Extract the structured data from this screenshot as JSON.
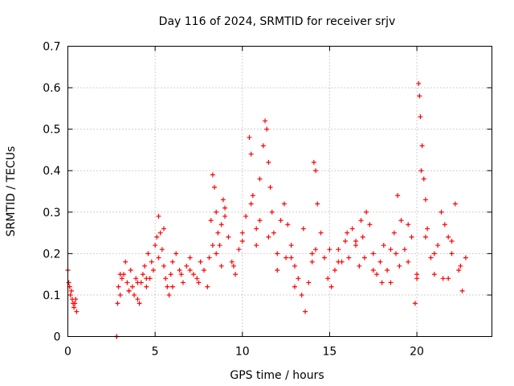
{
  "chart_data": {
    "type": "scatter",
    "title": "Day 116 of 2024, SRMTID for receiver srjv",
    "xlabel": "GPS time / hours",
    "ylabel": "SRMTID / TECUs",
    "xlim": [
      0,
      24.3
    ],
    "ylim": [
      0,
      0.7
    ],
    "xticks": [
      0,
      5,
      10,
      15,
      20
    ],
    "xtick_labels": [
      "0",
      "5",
      "10",
      "15",
      "20"
    ],
    "yticks": [
      0,
      0.1,
      0.2,
      0.3,
      0.4,
      0.5,
      0.6,
      0.7
    ],
    "ytick_labels": [
      "0",
      "0.1",
      "0.2",
      "0.3",
      "0.4",
      "0.5",
      "0.6",
      "0.7"
    ],
    "grid": true,
    "marker": "plus",
    "color": "#ff0000",
    "series": [
      {
        "name": "SRMTID",
        "x": [
          0.0,
          0.05,
          0.1,
          0.15,
          0.2,
          0.25,
          0.3,
          0.35,
          0.4,
          0.45,
          0.5,
          2.8,
          2.8,
          2.85,
          2.9,
          3.0,
          3.1,
          3.2,
          3.3,
          3.4,
          3.5,
          3.6,
          3.7,
          3.8,
          3.9,
          4.0,
          4.1,
          4.2,
          4.3,
          4.4,
          4.5,
          4.6,
          4.7,
          4.8,
          4.9,
          5.0,
          5.1,
          5.2,
          5.3,
          5.4,
          5.5,
          5.6,
          5.7,
          5.8,
          5.9,
          6.0,
          6.2,
          6.4,
          6.6,
          6.8,
          7.0,
          7.2,
          7.4,
          7.6,
          7.8,
          8.0,
          8.1,
          8.2,
          8.3,
          8.4,
          8.5,
          8.6,
          8.7,
          8.8,
          8.9,
          9.0,
          9.2,
          9.4,
          9.6,
          9.8,
          10.0,
          10.2,
          10.4,
          10.5,
          10.6,
          10.8,
          11.0,
          11.2,
          11.3,
          11.4,
          11.5,
          11.6,
          11.7,
          11.8,
          12.0,
          12.2,
          12.4,
          12.6,
          12.8,
          13.0,
          13.2,
          13.4,
          13.6,
          13.8,
          14.0,
          14.1,
          14.2,
          14.3,
          14.5,
          14.7,
          14.9,
          15.1,
          15.3,
          15.5,
          15.7,
          15.9,
          16.1,
          16.3,
          16.5,
          16.7,
          16.9,
          17.1,
          17.3,
          17.5,
          17.7,
          17.9,
          18.1,
          18.3,
          18.5,
          18.7,
          18.9,
          19.1,
          19.3,
          19.5,
          19.7,
          19.9,
          20.0,
          20.1,
          20.15,
          20.2,
          20.25,
          20.3,
          20.4,
          20.5,
          20.6,
          20.8,
          21.0,
          21.2,
          21.4,
          21.6,
          21.8,
          22.0,
          22.2,
          22.4,
          22.6,
          22.8,
          3.0,
          4.0,
          5.2,
          6.5,
          7.5,
          8.3,
          9.0,
          10.5,
          11.5,
          12.5,
          13.5,
          14.2,
          15.5,
          16.5,
          17.5,
          18.5,
          19.5,
          20.5,
          21.5,
          22.5,
          3.5,
          4.5,
          6.0,
          7.0,
          8.5,
          9.5,
          10.0,
          11.0,
          12.0,
          13.0,
          14.0,
          15.0,
          16.0,
          17.0,
          18.0,
          19.0,
          20.0,
          21.0,
          22.0,
          5.5,
          8.8,
          10.8,
          12.8,
          16.8,
          18.8,
          21.8
        ],
        "y": [
          0.16,
          0.13,
          0.12,
          0.1,
          0.11,
          0.09,
          0.08,
          0.07,
          0.08,
          0.09,
          0.06,
          0.0,
          0.0,
          0.08,
          0.12,
          0.1,
          0.14,
          0.15,
          0.18,
          0.13,
          0.11,
          0.16,
          0.12,
          0.1,
          0.14,
          0.09,
          0.08,
          0.13,
          0.15,
          0.17,
          0.12,
          0.2,
          0.14,
          0.18,
          0.16,
          0.22,
          0.24,
          0.29,
          0.25,
          0.21,
          0.17,
          0.14,
          0.12,
          0.1,
          0.15,
          0.18,
          0.2,
          0.16,
          0.13,
          0.17,
          0.19,
          0.15,
          0.14,
          0.18,
          0.16,
          0.12,
          0.19,
          0.28,
          0.39,
          0.36,
          0.3,
          0.25,
          0.22,
          0.27,
          0.33,
          0.31,
          0.24,
          0.18,
          0.15,
          0.21,
          0.25,
          0.29,
          0.48,
          0.44,
          0.34,
          0.26,
          0.38,
          0.46,
          0.52,
          0.5,
          0.42,
          0.36,
          0.3,
          0.25,
          0.2,
          0.28,
          0.32,
          0.27,
          0.22,
          0.17,
          0.14,
          0.1,
          0.06,
          0.13,
          0.2,
          0.42,
          0.4,
          0.32,
          0.25,
          0.19,
          0.14,
          0.12,
          0.16,
          0.21,
          0.18,
          0.23,
          0.19,
          0.26,
          0.22,
          0.17,
          0.24,
          0.3,
          0.27,
          0.2,
          0.15,
          0.18,
          0.22,
          0.16,
          0.13,
          0.25,
          0.34,
          0.28,
          0.21,
          0.18,
          0.24,
          0.08,
          0.14,
          0.61,
          0.58,
          0.53,
          0.4,
          0.46,
          0.38,
          0.33,
          0.26,
          0.19,
          0.15,
          0.22,
          0.3,
          0.27,
          0.24,
          0.2,
          0.32,
          0.16,
          0.11,
          0.19,
          0.15,
          0.13,
          0.19,
          0.15,
          0.13,
          0.22,
          0.29,
          0.32,
          0.24,
          0.19,
          0.26,
          0.21,
          0.18,
          0.23,
          0.16,
          0.21,
          0.27,
          0.24,
          0.14,
          0.17,
          0.11,
          0.14,
          0.12,
          0.16,
          0.2,
          0.17,
          0.23,
          0.28,
          0.16,
          0.12,
          0.18,
          0.21,
          0.25,
          0.19,
          0.13,
          0.17,
          0.15,
          0.2,
          0.23,
          0.26,
          0.17,
          0.22,
          0.19,
          0.28,
          0.2,
          0.14
        ]
      }
    ]
  }
}
